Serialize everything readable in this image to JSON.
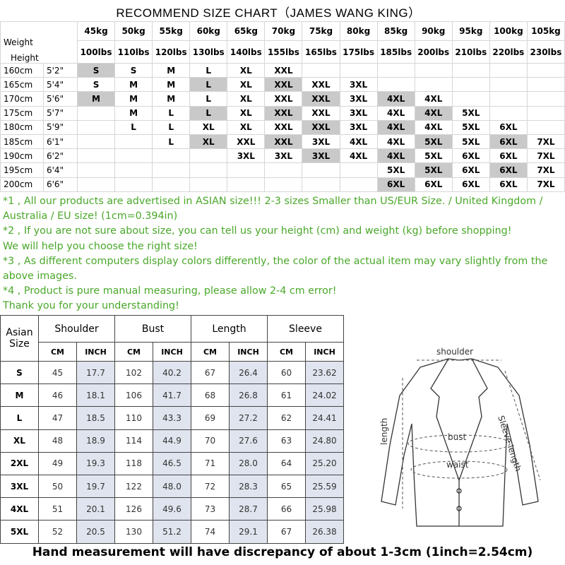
{
  "title": "RECOMMEND SIZE CHART（JAMES WANG KING）",
  "recommend": {
    "weight_label": "Weight",
    "height_label": "Height",
    "kg": [
      "45kg",
      "50kg",
      "55kg",
      "60kg",
      "65kg",
      "70kg",
      "75kg",
      "80kg",
      "85kg",
      "90kg",
      "95kg",
      "100kg",
      "105kg"
    ],
    "lbs": [
      "100lbs",
      "110lbs",
      "120lbs",
      "130lbs",
      "140lbs",
      "155lbs",
      "165lbs",
      "175lbs",
      "185lbs",
      "200lbs",
      "210lbs",
      "220lbs",
      "230lbs"
    ],
    "rows": [
      {
        "cm": "160cm",
        "ft": "5'2\"",
        "sizes": [
          "S",
          "S",
          "M",
          "L",
          "XL",
          "XXL",
          null,
          null,
          null,
          null,
          null,
          null,
          null
        ]
      },
      {
        "cm": "165cm",
        "ft": "5'4\"",
        "sizes": [
          "S",
          "M",
          "M",
          "L",
          "XL",
          "XXL",
          "XXL",
          "3XL",
          null,
          null,
          null,
          null,
          null
        ]
      },
      {
        "cm": "170cm",
        "ft": "5'6\"",
        "sizes": [
          "M",
          "M",
          "M",
          "L",
          "XL",
          "XXL",
          "XXL",
          "3XL",
          "4XL",
          "4XL",
          null,
          null,
          null
        ]
      },
      {
        "cm": "175cm",
        "ft": "5'7\"",
        "sizes": [
          null,
          "M",
          "L",
          "L",
          "XL",
          "XXL",
          "XXL",
          "3XL",
          "4XL",
          "4XL",
          "5XL",
          null,
          null
        ]
      },
      {
        "cm": "180cm",
        "ft": "5'9\"",
        "sizes": [
          null,
          "L",
          "L",
          "XL",
          "XL",
          "XXL",
          "XXL",
          "3XL",
          "4XL",
          "4XL",
          "5XL",
          "6XL",
          null
        ]
      },
      {
        "cm": "185cm",
        "ft": "6'1\"",
        "sizes": [
          null,
          null,
          "L",
          "XL",
          "XXL",
          "XXL",
          "3XL",
          "4XL",
          "4XL",
          "5XL",
          "5XL",
          "6XL",
          "7XL"
        ]
      },
      {
        "cm": "190cm",
        "ft": "6'2\"",
        "sizes": [
          null,
          null,
          null,
          null,
          "3XL",
          "3XL",
          "3XL",
          "4XL",
          "4XL",
          "5XL",
          "6XL",
          "6XL",
          "7XL"
        ]
      },
      {
        "cm": "195cm",
        "ft": "6'4\"",
        "sizes": [
          null,
          null,
          null,
          null,
          null,
          null,
          null,
          null,
          "5XL",
          "5XL",
          "6XL",
          "6XL",
          "7XL"
        ]
      },
      {
        "cm": "200cm",
        "ft": "6'6\"",
        "sizes": [
          null,
          null,
          null,
          null,
          null,
          null,
          null,
          null,
          "6XL",
          "6XL",
          "6XL",
          "6XL",
          "7XL"
        ]
      }
    ]
  },
  "notes": [
    "*1 , All our products are advertised in ASIAN size!!! 2-3 sizes Smaller than US/EUR Size. / United Kingdom / Australia / EU size! (1cm=0.394in)",
    "*2 , If you are not sure about size, you can tell us your height (cm) and weight (kg) before shopping!",
    "We will help you choose the right size!",
    "*3 , As different computers display colors differently, the color of the actual item may vary slightly from the above images.",
    "*4 , Product is pure manual measuring, please allow 2-4 cm error!",
    "Thank you for your understanding!"
  ],
  "measure": {
    "size_header": "Asian Size",
    "groups": [
      "Shoulder",
      "Bust",
      "Length",
      "Sleeve"
    ],
    "units": [
      "CM",
      "INCH"
    ],
    "rows": [
      [
        "S",
        "45",
        "17.7",
        "102",
        "40.2",
        "67",
        "26.4",
        "60",
        "23.62"
      ],
      [
        "M",
        "46",
        "18.1",
        "106",
        "41.7",
        "68",
        "26.8",
        "61",
        "24.02"
      ],
      [
        "L",
        "47",
        "18.5",
        "110",
        "43.3",
        "69",
        "27.2",
        "62",
        "24.41"
      ],
      [
        "XL",
        "48",
        "18.9",
        "114",
        "44.9",
        "70",
        "27.6",
        "63",
        "24.80"
      ],
      [
        "2XL",
        "49",
        "19.3",
        "118",
        "46.5",
        "71",
        "28.0",
        "64",
        "25.20"
      ],
      [
        "3XL",
        "50",
        "19.7",
        "122",
        "48.0",
        "72",
        "28.3",
        "65",
        "25.59"
      ],
      [
        "4XL",
        "51",
        "20.1",
        "126",
        "49.6",
        "73",
        "28.7",
        "66",
        "25.98"
      ],
      [
        "5XL",
        "52",
        "20.5",
        "130",
        "51.2",
        "74",
        "29.1",
        "67",
        "26.38"
      ]
    ]
  },
  "diagram": {
    "shoulder": "shoulder",
    "length": "length",
    "bust": "bust",
    "waist": "waist",
    "sleeve": "Sleeve length"
  },
  "footer": "Hand measurement will have discrepancy of about 1-3cm (1inch=2.54cm)"
}
